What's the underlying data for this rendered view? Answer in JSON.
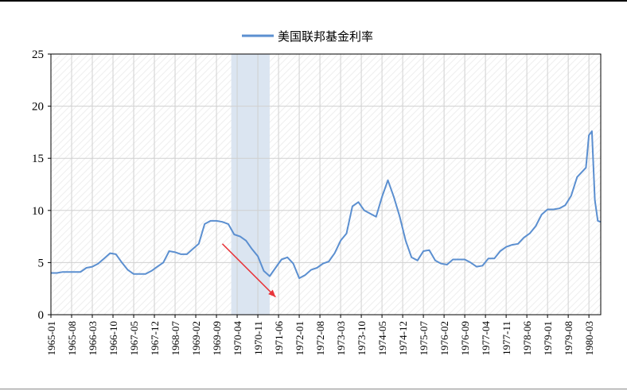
{
  "chart_data": {
    "type": "line",
    "series": [
      {
        "name": "美国联邦基金利率",
        "color": "#5b8fd0",
        "points": [
          [
            "1965-01",
            4.0
          ],
          [
            "1965-03",
            4.0
          ],
          [
            "1965-05",
            4.1
          ],
          [
            "1965-07",
            4.1
          ],
          [
            "1965-09",
            4.1
          ],
          [
            "1965-11",
            4.1
          ],
          [
            "1966-01",
            4.5
          ],
          [
            "1966-03",
            4.6
          ],
          [
            "1966-05",
            4.9
          ],
          [
            "1966-07",
            5.4
          ],
          [
            "1966-09",
            5.9
          ],
          [
            "1966-11",
            5.8
          ],
          [
            "1967-01",
            5.0
          ],
          [
            "1967-03",
            4.3
          ],
          [
            "1967-05",
            3.9
          ],
          [
            "1967-07",
            3.9
          ],
          [
            "1967-09",
            3.9
          ],
          [
            "1967-11",
            4.2
          ],
          [
            "1968-01",
            4.6
          ],
          [
            "1968-03",
            5.0
          ],
          [
            "1968-05",
            6.1
          ],
          [
            "1968-07",
            6.0
          ],
          [
            "1968-09",
            5.8
          ],
          [
            "1968-11",
            5.8
          ],
          [
            "1969-01",
            6.3
          ],
          [
            "1969-03",
            6.8
          ],
          [
            "1969-05",
            8.7
          ],
          [
            "1969-07",
            9.0
          ],
          [
            "1969-09",
            9.0
          ],
          [
            "1969-11",
            8.9
          ],
          [
            "1970-01",
            8.7
          ],
          [
            "1970-03",
            7.7
          ],
          [
            "1970-05",
            7.5
          ],
          [
            "1970-07",
            7.1
          ],
          [
            "1970-09",
            6.3
          ],
          [
            "1970-11",
            5.6
          ],
          [
            "1971-01",
            4.2
          ],
          [
            "1971-03",
            3.7
          ],
          [
            "1971-05",
            4.5
          ],
          [
            "1971-07",
            5.3
          ],
          [
            "1971-09",
            5.5
          ],
          [
            "1971-11",
            4.9
          ],
          [
            "1972-01",
            3.5
          ],
          [
            "1972-03",
            3.8
          ],
          [
            "1972-05",
            4.3
          ],
          [
            "1972-07",
            4.5
          ],
          [
            "1972-09",
            4.9
          ],
          [
            "1972-11",
            5.1
          ],
          [
            "1973-01",
            5.9
          ],
          [
            "1973-03",
            7.1
          ],
          [
            "1973-05",
            7.8
          ],
          [
            "1973-07",
            10.4
          ],
          [
            "1973-09",
            10.8
          ],
          [
            "1973-11",
            10.0
          ],
          [
            "1974-01",
            9.7
          ],
          [
            "1974-03",
            9.4
          ],
          [
            "1974-05",
            11.3
          ],
          [
            "1974-07",
            12.9
          ],
          [
            "1974-09",
            11.3
          ],
          [
            "1974-11",
            9.4
          ],
          [
            "1975-01",
            7.1
          ],
          [
            "1975-03",
            5.5
          ],
          [
            "1975-05",
            5.2
          ],
          [
            "1975-07",
            6.1
          ],
          [
            "1975-09",
            6.2
          ],
          [
            "1975-11",
            5.2
          ],
          [
            "1976-01",
            4.9
          ],
          [
            "1976-03",
            4.8
          ],
          [
            "1976-05",
            5.3
          ],
          [
            "1976-07",
            5.3
          ],
          [
            "1976-09",
            5.3
          ],
          [
            "1976-11",
            5.0
          ],
          [
            "1977-01",
            4.6
          ],
          [
            "1977-03",
            4.7
          ],
          [
            "1977-05",
            5.4
          ],
          [
            "1977-07",
            5.4
          ],
          [
            "1977-09",
            6.1
          ],
          [
            "1977-11",
            6.5
          ],
          [
            "1978-01",
            6.7
          ],
          [
            "1978-03",
            6.8
          ],
          [
            "1978-05",
            7.4
          ],
          [
            "1978-07",
            7.8
          ],
          [
            "1978-09",
            8.5
          ],
          [
            "1978-11",
            9.6
          ],
          [
            "1979-01",
            10.1
          ],
          [
            "1979-03",
            10.1
          ],
          [
            "1979-05",
            10.2
          ],
          [
            "1979-07",
            10.5
          ],
          [
            "1979-09",
            11.4
          ],
          [
            "1979-11",
            13.2
          ],
          [
            "1980-01",
            13.8
          ],
          [
            "1980-02",
            14.1
          ],
          [
            "1980-03",
            17.2
          ],
          [
            "1980-04",
            17.6
          ],
          [
            "1980-05",
            11.0
          ],
          [
            "1980-06",
            9.0
          ],
          [
            "1980-07",
            8.9
          ]
        ]
      }
    ],
    "xlabels": [
      "1965-01",
      "1965-08",
      "1966-03",
      "1966-10",
      "1967-05",
      "1967-12",
      "1968-07",
      "1969-02",
      "1969-09",
      "1970-04",
      "1970-11",
      "1971-06",
      "1972-01",
      "1972-08",
      "1973-03",
      "1973-10",
      "1974-05",
      "1974-12",
      "1975-07",
      "1976-02",
      "1976-09",
      "1977-04",
      "1977-11",
      "1978-06",
      "1979-01",
      "1979-08",
      "1980-03"
    ],
    "yticks": [
      0,
      5,
      10,
      15,
      20,
      25
    ],
    "ylim": [
      0,
      25
    ],
    "xlim": [
      "1965-01",
      "1980-07"
    ],
    "grid": true,
    "legend": "top-center",
    "shaded_region": {
      "from": "1970-02",
      "to": "1971-03",
      "color": "#dbe5f1"
    },
    "arrow": {
      "from": [
        "1969-11",
        6.8
      ],
      "to": [
        "1971-05",
        1.7
      ],
      "color": "#e8353a"
    },
    "title": "",
    "xlabel": "",
    "ylabel": ""
  }
}
